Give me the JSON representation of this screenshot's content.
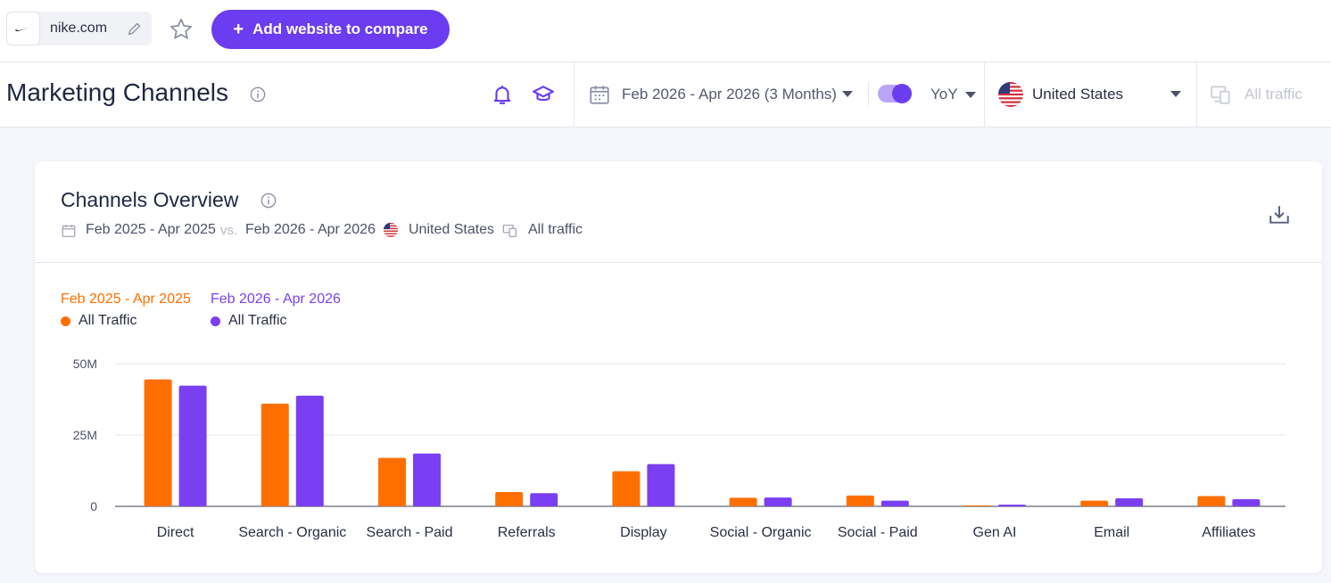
{
  "topbar": {
    "site_name": "nike.com",
    "add_button_label": "Add website to compare"
  },
  "header": {
    "title": "Marketing Channels",
    "date_range": "Feb 2026 - Apr 2026 (3 Months)",
    "comparison": "YoY",
    "country": "United States",
    "traffic": "All traffic"
  },
  "card": {
    "title": "Channels Overview",
    "period_a": "Feb 2025 - Apr 2025",
    "vs": "vs.",
    "period_b": "Feb 2026 - Apr 2026",
    "country": "United States",
    "traffic": "All traffic"
  },
  "colors": {
    "accent": "#6b3cf0",
    "series_a": "#ff6f00",
    "series_b": "#7b3ff2"
  },
  "chart_data": {
    "type": "bar",
    "categories": [
      "Direct",
      "Search - Organic",
      "Search - Paid",
      "Referrals",
      "Display",
      "Social - Organic",
      "Social - Paid",
      "Gen AI",
      "Email",
      "Affiliates"
    ],
    "series": [
      {
        "name": "All Traffic",
        "period": "Feb 2025 - Apr 2025",
        "color": "#ff6f00",
        "values": [
          44500000,
          36000000,
          17000000,
          5000000,
          12300000,
          3000000,
          3800000,
          300000,
          2000000,
          3600000
        ]
      },
      {
        "name": "All Traffic",
        "period": "Feb 2026 - Apr 2026",
        "color": "#7b3ff2",
        "values": [
          42300000,
          38800000,
          18500000,
          4600000,
          14800000,
          3100000,
          2000000,
          600000,
          2800000,
          2500000
        ]
      }
    ],
    "yticks": [
      "50M",
      "25M",
      "0"
    ],
    "ylim": [
      0,
      50000000
    ],
    "grid": true,
    "legend_position": "top-left"
  }
}
